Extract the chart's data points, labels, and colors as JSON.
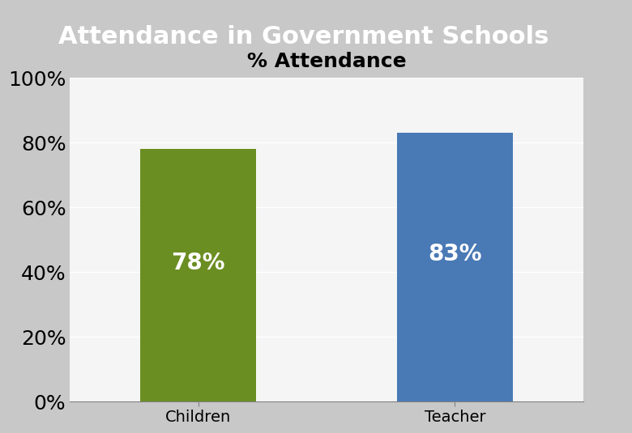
{
  "title": "Attendance in Government Schools",
  "chart_title": "% Attendance",
  "categories": [
    "Children",
    "Teacher"
  ],
  "values": [
    78,
    83
  ],
  "labels": [
    "78%",
    "83%"
  ],
  "bar_colors": [
    "#6b8e23",
    "#4a7ab5"
  ],
  "title_bg_color": "#2e6da4",
  "title_text_color": "#ffffff",
  "chart_bg_color": "#f5f5f5",
  "outer_bg_color": "#c8c8c8",
  "ylim": [
    0,
    100
  ],
  "yticks": [
    0,
    20,
    40,
    60,
    80,
    100
  ],
  "ytick_labels": [
    "0%",
    "20%",
    "40%",
    "60%",
    "80%",
    "100%"
  ],
  "label_fontsize": 18,
  "bar_label_fontsize": 20,
  "xlabel_fontsize": 14,
  "title_fontsize": 22,
  "chart_title_fontsize": 18
}
